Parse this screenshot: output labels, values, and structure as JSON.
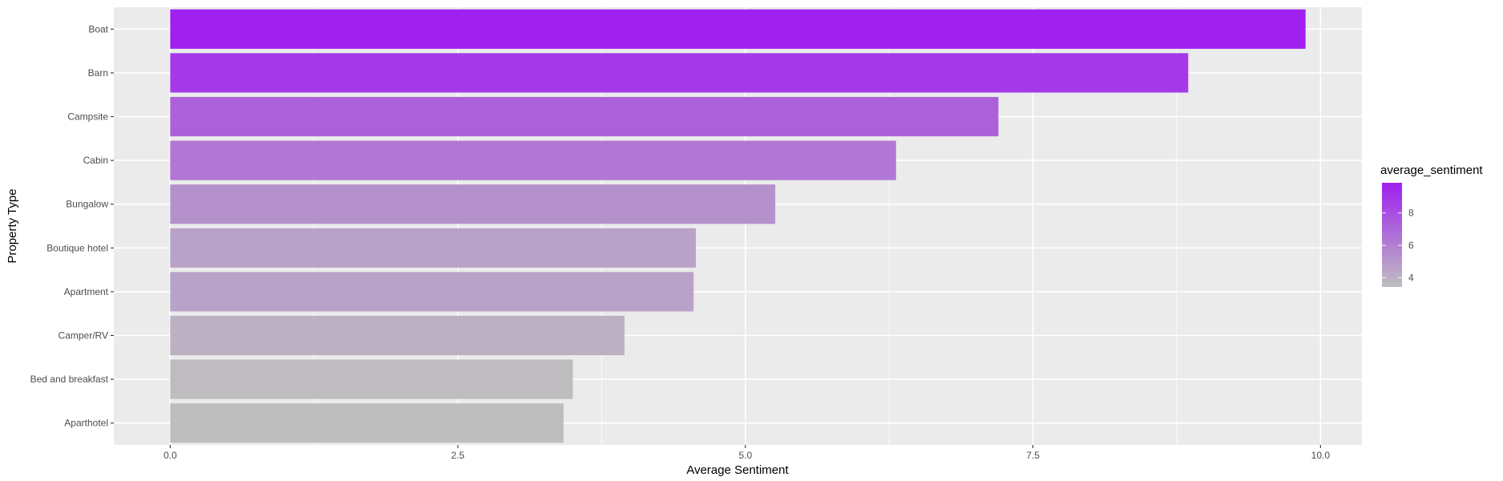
{
  "chart_data": {
    "type": "bar",
    "orientation": "horizontal",
    "categories": [
      "Boat",
      "Barn",
      "Campsite",
      "Cabin",
      "Bungalow",
      "Boutique hotel",
      "Apartment",
      "Camper/RV",
      "Bed and breakfast",
      "Aparthotel"
    ],
    "values": [
      9.87,
      8.85,
      7.2,
      6.31,
      5.26,
      4.57,
      4.55,
      3.95,
      3.5,
      3.42
    ],
    "xlabel": "Average Sentiment",
    "ylabel": "Property Type",
    "xlim": [
      -0.49,
      10.36
    ],
    "x_ticks": [
      0.0,
      2.5,
      5.0,
      7.5,
      10.0
    ],
    "x_tick_labels": [
      "0.0",
      "2.5",
      "5.0",
      "7.5",
      "10.0"
    ],
    "grid": true,
    "legend": {
      "title": "average_sentiment",
      "placement": "right",
      "ticks": [
        4,
        6,
        8
      ],
      "tick_labels": [
        "4",
        "6",
        "8"
      ],
      "range": [
        3.42,
        9.87
      ],
      "low_color": "#BEBEBE",
      "high_color": "#A020F0"
    },
    "colors": {
      "panel_background": "#EBEBEB",
      "gridline": "#FFFFFF",
      "tick_text": "#4D4D4D"
    }
  }
}
